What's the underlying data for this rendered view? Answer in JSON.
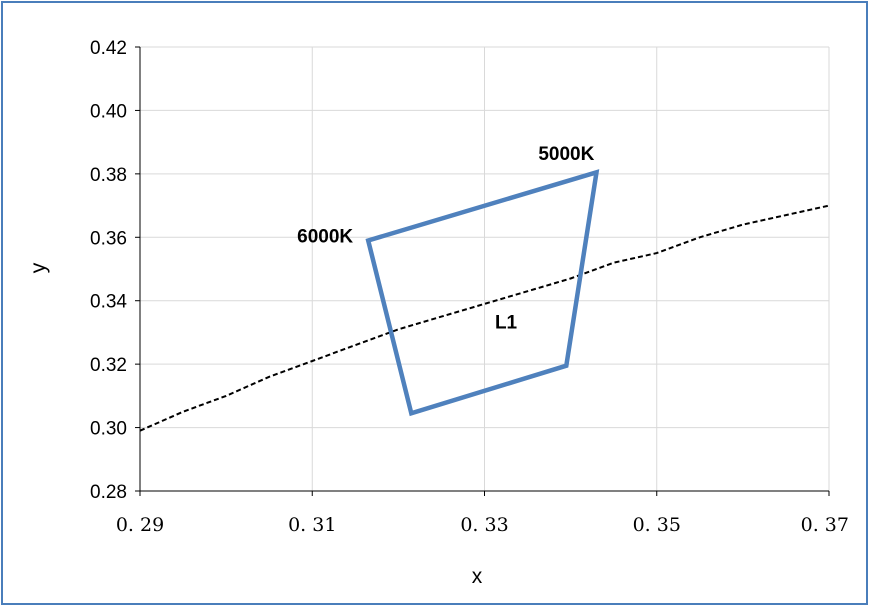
{
  "chart_data": {
    "type": "line",
    "title": "",
    "xlabel": "x",
    "ylabel": "y",
    "xlim": [
      0.29,
      0.37
    ],
    "ylim": [
      0.28,
      0.42
    ],
    "x_ticks": [
      "0. 29",
      "0. 31",
      "0. 33",
      "0. 35",
      "0. 37"
    ],
    "y_ticks": [
      "0.28",
      "0.30",
      "0.32",
      "0.34",
      "0.36",
      "0.38",
      "0.40",
      "0.42"
    ],
    "grid": true,
    "legend": "none",
    "series": [
      {
        "style": "dashed",
        "color": "#000000",
        "points": [
          [
            0.29,
            0.299
          ],
          [
            0.295,
            0.305
          ],
          [
            0.3,
            0.31
          ],
          [
            0.305,
            0.316
          ],
          [
            0.31,
            0.321
          ],
          [
            0.315,
            0.326
          ],
          [
            0.32,
            0.331
          ],
          [
            0.325,
            0.335
          ],
          [
            0.33,
            0.339
          ],
          [
            0.335,
            0.343
          ],
          [
            0.34,
            0.347
          ],
          [
            0.345,
            0.352
          ],
          [
            0.35,
            0.355
          ],
          [
            0.355,
            0.36
          ],
          [
            0.36,
            0.364
          ],
          [
            0.365,
            0.367
          ],
          [
            0.37,
            0.37
          ]
        ]
      },
      {
        "style": "solid",
        "color": "#4f81bd",
        "closed": true,
        "points": [
          [
            0.3165,
            0.359
          ],
          [
            0.343,
            0.3805
          ],
          [
            0.3395,
            0.3195
          ],
          [
            0.3215,
            0.3045
          ]
        ]
      }
    ],
    "annotations": [
      {
        "text": "5000K",
        "x": 0.3395,
        "y": 0.3865
      },
      {
        "text": "6000K",
        "x": 0.3115,
        "y": 0.3605
      },
      {
        "text": "L1",
        "x": 0.3325,
        "y": 0.3335
      }
    ]
  }
}
